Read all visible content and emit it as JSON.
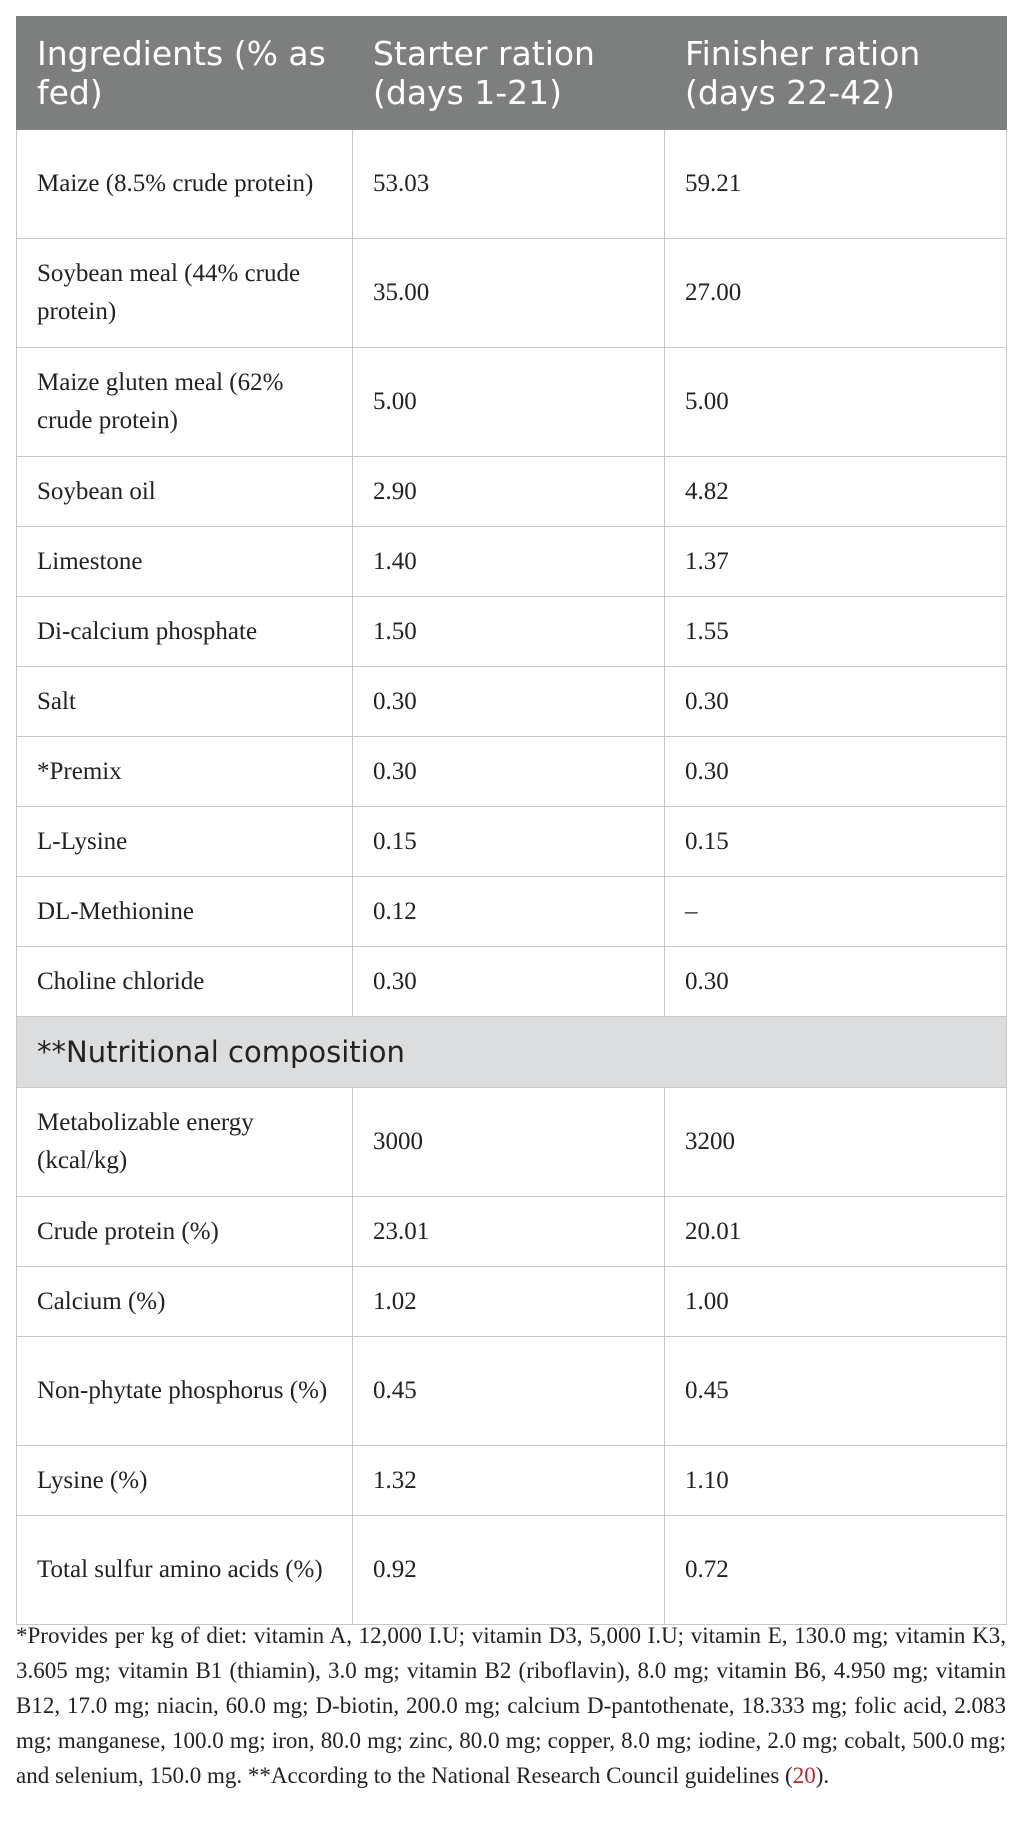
{
  "table": {
    "header": [
      "Ingredients (% as fed)",
      "Starter ration (days 1-21)",
      "Finisher ration (days 22-42)"
    ],
    "rows": [
      [
        "Maize (8.5% crude protein)",
        "53.03",
        "59.21"
      ],
      [
        "Soybean meal (44% crude protein)",
        "35.00",
        "27.00"
      ],
      [
        "Maize gluten meal (62% crude protein)",
        "5.00",
        "5.00"
      ],
      [
        "Soybean oil",
        "2.90",
        "4.82"
      ],
      [
        "Limestone",
        "1.40",
        "1.37"
      ],
      [
        "Di-calcium phosphate",
        "1.50",
        "1.55"
      ],
      [
        "Salt",
        "0.30",
        "0.30"
      ],
      [
        "*Premix",
        "0.30",
        "0.30"
      ],
      [
        "L-Lysine",
        "0.15",
        "0.15"
      ],
      [
        "DL-Methionine",
        "0.12",
        "–"
      ],
      [
        "Choline chloride",
        "0.30",
        "0.30"
      ]
    ],
    "section": "**Nutritional composition",
    "section_rows": [
      [
        "Metabolizable energy (kcal/kg)",
        "3000",
        "3200"
      ],
      [
        "Crude protein (%)",
        "23.01",
        "20.01"
      ],
      [
        "Calcium (%)",
        "1.02",
        "1.00"
      ],
      [
        "Non-phytate phosphorus (%)",
        "0.45",
        "0.45"
      ],
      [
        "Lysine (%)",
        "1.32",
        "1.10"
      ],
      [
        "Total sulfur amino acids (%)",
        "0.92",
        "0.72"
      ]
    ]
  },
  "footnote": {
    "text": "*Provides per kg of diet: vitamin A, 12,000 I.U; vitamin D3, 5,000 I.U; vitamin E, 130.0 mg; vitamin K3, 3.605 mg; vitamin B1 (thiamin), 3.0 mg; vitamin B2 (riboflavin), 8.0 mg; vitamin B6, 4.950 mg; vitamin B12, 17.0 mg; niacin, 60.0 mg; D-biotin, 200.0 mg; calcium D-pantothenate, 18.333 mg; folic acid, 2.083 mg; manganese, 100.0 mg; iron, 80.0 mg; zinc, 80.0 mg; copper, 8.0 mg; iodine, 2.0 mg; cobalt, 500.0 mg; and selenium, 150.0 mg. **According to the National Research Council guidelines (",
    "ref": "20",
    "text_end": ")."
  }
}
